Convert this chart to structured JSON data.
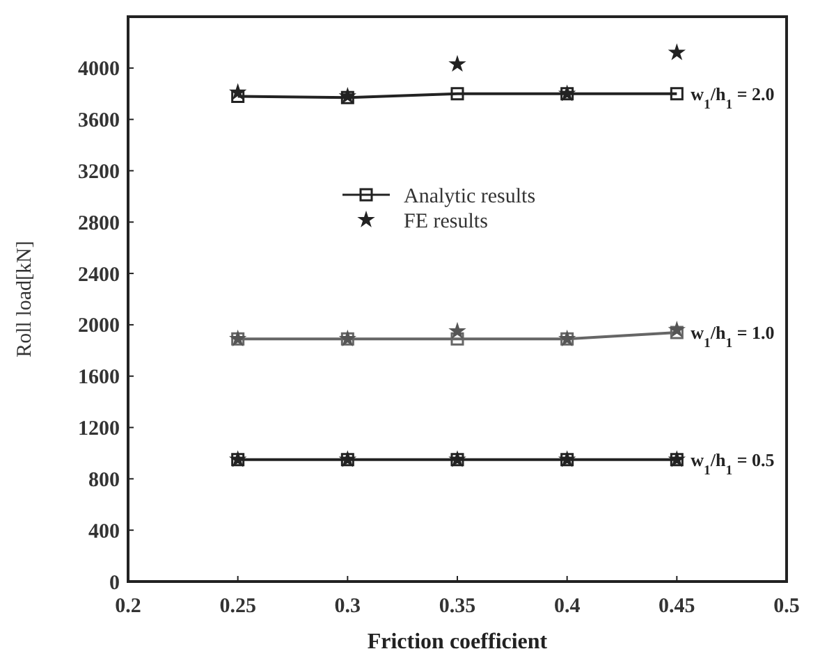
{
  "chart_data": {
    "type": "line",
    "xlabel": "Friction coefficient",
    "ylabel": "Roll load[kN]",
    "x": [
      0.25,
      0.3,
      0.35,
      0.4,
      0.45
    ],
    "xlim": [
      0.2,
      0.5
    ],
    "xticks": [
      0.2,
      0.25,
      0.3,
      0.35,
      0.4,
      0.45,
      0.5
    ],
    "ylim": [
      0,
      4400
    ],
    "yticks": [
      0,
      400,
      800,
      1200,
      1600,
      2000,
      2400,
      2800,
      3200,
      3600,
      4000
    ],
    "grid": false,
    "legend": "top",
    "series": [
      {
        "name": "Analytic results",
        "marker": "square",
        "color": "#222222",
        "values": [
          3780,
          3770,
          3800,
          3800,
          3800
        ]
      },
      {
        "marker": "square",
        "color": "#666666",
        "values": [
          1890,
          1890,
          1890,
          1890,
          1940
        ]
      },
      {
        "marker": "square",
        "color": "#222222",
        "values": [
          950,
          950,
          950,
          950,
          950
        ]
      },
      {
        "name": "FE results",
        "type": "scatter",
        "marker": "star",
        "color": "#222222",
        "values": [
          3810,
          3780,
          4030,
          3800,
          4120
        ]
      },
      {
        "type": "scatter",
        "marker": "star",
        "color": "#555555",
        "values": [
          1890,
          1890,
          1950,
          1890,
          1960
        ]
      },
      {
        "type": "scatter",
        "marker": "star",
        "color": "#222222",
        "values": [
          950,
          950,
          950,
          950,
          950
        ]
      }
    ],
    "annotations": [
      "w$_{1}$/h$_{1}$ = 2.0",
      "w$_{1}$/h$_{1}$ = 1.0",
      "w$_{1}$/h$_{1}$ = 0.5"
    ]
  }
}
